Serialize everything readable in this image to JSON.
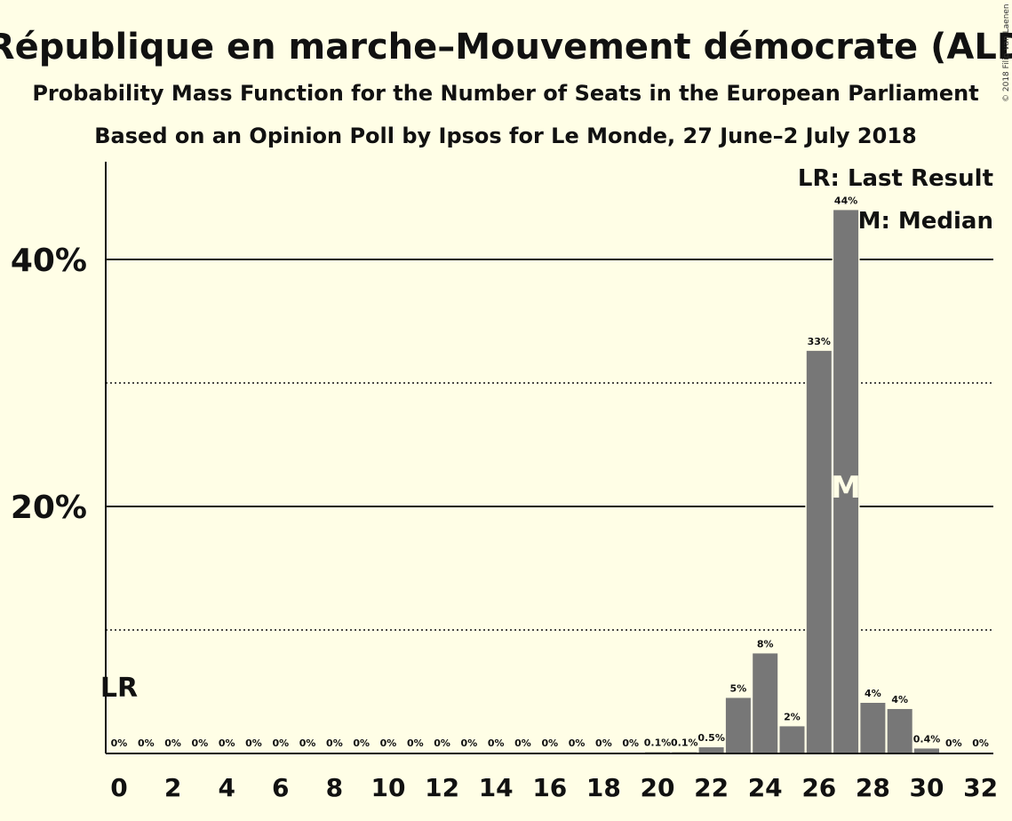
{
  "chart_data": {
    "type": "bar",
    "title": "La République en marche–Mouvement démocrate (ALDE)",
    "subtitle_1": "Probability Mass Function for the Number of Seats in the European Parliament",
    "subtitle_2": "Based on an Opinion Poll by Ipsos for Le Monde, 27 June–2 July 2018",
    "copyright": "© 2018 Filip van Laenen",
    "x": [
      0,
      1,
      2,
      3,
      4,
      5,
      6,
      7,
      8,
      9,
      10,
      11,
      12,
      13,
      14,
      15,
      16,
      17,
      18,
      19,
      20,
      21,
      22,
      23,
      24,
      25,
      26,
      27,
      28,
      29,
      30,
      31,
      32
    ],
    "values": [
      0,
      0,
      0,
      0,
      0,
      0,
      0,
      0,
      0,
      0,
      0,
      0,
      0,
      0,
      0,
      0,
      0,
      0,
      0,
      0,
      0.1,
      0.1,
      0.5,
      4.5,
      8.1,
      2.2,
      32.6,
      44.0,
      4.1,
      3.6,
      0.4,
      0,
      0
    ],
    "data_labels": [
      "0%",
      "0%",
      "0%",
      "0%",
      "0%",
      "0%",
      "0%",
      "0%",
      "0%",
      "0%",
      "0%",
      "0%",
      "0%",
      "0%",
      "0%",
      "0%",
      "0%",
      "0%",
      "0%",
      "0%",
      "0.1%",
      "0.1%",
      "0.5%",
      "5%",
      "8%",
      "2%",
      "33%",
      "44%",
      "4%",
      "4%",
      "0.4%",
      "0%",
      "0%"
    ],
    "x_ticks": [
      "0",
      "2",
      "4",
      "6",
      "8",
      "10",
      "12",
      "14",
      "16",
      "18",
      "20",
      "22",
      "24",
      "26",
      "28",
      "30",
      "32"
    ],
    "y_ticks": [
      "20%",
      "40%"
    ],
    "ylim": [
      0,
      48
    ],
    "major_grid": [
      20,
      40
    ],
    "minor_grid": [
      10,
      30
    ],
    "last_result": 0,
    "median": 27,
    "lr_label": "LR",
    "m_label": "M",
    "legend": {
      "placement": "top-right",
      "entries": [
        "LR: Last Result",
        "M: Median"
      ]
    },
    "bar_color": "#777777"
  }
}
